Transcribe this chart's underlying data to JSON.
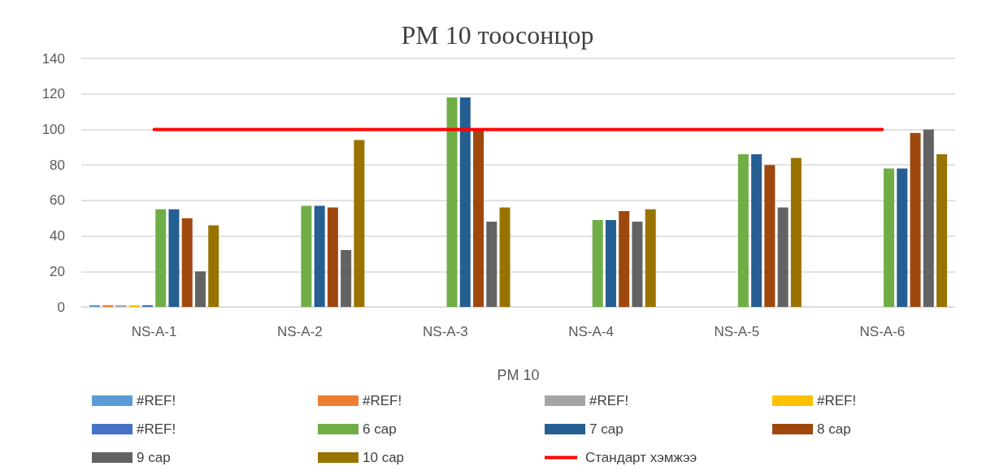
{
  "chart_data": {
    "type": "bar",
    "title": "PM 10 тоосонцор",
    "xlabel": "PM 10",
    "categories": [
      "NS-A-1",
      "NS-A-2",
      "NS-A-3",
      "NS-A-4",
      "NS-A-5",
      "NS-A-6"
    ],
    "series": [
      {
        "name": "#REF!",
        "color": "#5b9bd5",
        "values": [
          1,
          null,
          null,
          null,
          null,
          null
        ]
      },
      {
        "name": "#REF!",
        "color": "#ed7d31",
        "values": [
          1,
          null,
          null,
          null,
          null,
          null
        ]
      },
      {
        "name": "#REF!",
        "color": "#a5a5a5",
        "values": [
          1,
          null,
          null,
          null,
          null,
          null
        ]
      },
      {
        "name": "#REF!",
        "color": "#ffc000",
        "values": [
          1,
          null,
          null,
          null,
          null,
          null
        ]
      },
      {
        "name": "#REF!",
        "color": "#4472c4",
        "values": [
          1,
          null,
          null,
          null,
          null,
          null
        ]
      },
      {
        "name": "6 сар",
        "color": "#70ad47",
        "values": [
          55,
          57,
          118,
          49,
          86,
          78
        ]
      },
      {
        "name": "7 сар",
        "color": "#255e91",
        "values": [
          55,
          57,
          118,
          49,
          86,
          78
        ]
      },
      {
        "name": "8 сар",
        "color": "#9e480e",
        "values": [
          50,
          56,
          100,
          54,
          80,
          98
        ]
      },
      {
        "name": "9 сар",
        "color": "#636363",
        "values": [
          20,
          32,
          48,
          48,
          56,
          100
        ]
      },
      {
        "name": "10 сар",
        "color": "#997300",
        "values": [
          46,
          94,
          56,
          55,
          84,
          86
        ]
      },
      {
        "name": "Стандарт хэмжээ",
        "type": "line",
        "color": "#ff0000",
        "values": [
          100,
          100,
          100,
          100,
          100,
          100
        ]
      }
    ],
    "ylim": [
      0,
      140
    ],
    "yticks": [
      0,
      20,
      40,
      60,
      80,
      100,
      120,
      140
    ],
    "grid": "y",
    "legend": "bottom"
  }
}
